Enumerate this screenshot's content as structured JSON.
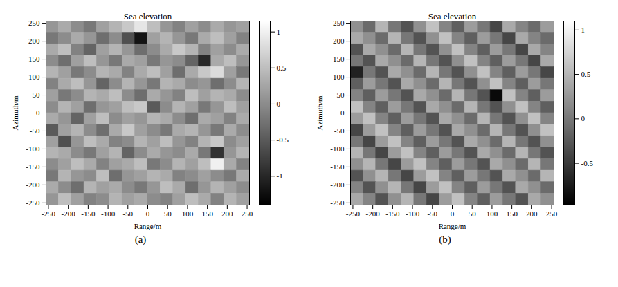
{
  "chart_data": [
    {
      "type": "heatmap",
      "title": "Sea elevation",
      "label": "(a)",
      "x_label": "Range/m",
      "y_label": "Azimuth/m",
      "xlim": [
        -256,
        256
      ],
      "xticks": [
        -250,
        -200,
        -150,
        -100,
        -50,
        0,
        50,
        100,
        150,
        200,
        250
      ],
      "ylim": [
        -256,
        256
      ],
      "yticks": [
        -250,
        -200,
        -150,
        -100,
        -50,
        0,
        50,
        100,
        150,
        200,
        250
      ],
      "colorbar": {
        "range": [
          -1.4,
          1.15
        ],
        "ticks": [
          -1,
          -0.5,
          0,
          0.5,
          1
        ]
      },
      "z": [
        [
          0.1,
          0.3,
          0.0,
          -0.2,
          0.2,
          0.4,
          0.6,
          0.9,
          0.5,
          0.1,
          -0.1,
          0.2,
          0.0,
          0.3,
          0.1,
          0.2
        ],
        [
          -0.2,
          0.0,
          0.3,
          0.1,
          -0.3,
          0.0,
          -0.6,
          -1.2,
          0.2,
          0.4,
          0.1,
          -0.2,
          0.3,
          0.5,
          0.2,
          -0.1
        ],
        [
          0.3,
          0.5,
          -0.1,
          -0.4,
          0.2,
          0.4,
          0.1,
          -0.3,
          0.0,
          0.3,
          0.6,
          0.4,
          -0.1,
          0.2,
          0.0,
          0.3
        ],
        [
          0.0,
          -0.3,
          0.2,
          0.5,
          0.1,
          -0.2,
          0.3,
          0.2,
          -0.2,
          0.1,
          0.0,
          -0.4,
          -1.0,
          0.3,
          0.5,
          0.1
        ],
        [
          0.4,
          0.2,
          -0.2,
          0.0,
          0.4,
          0.3,
          -0.1,
          0.3,
          0.5,
          0.2,
          -0.3,
          0.3,
          0.6,
          0.8,
          0.2,
          -0.2
        ],
        [
          -0.1,
          0.3,
          0.5,
          0.1,
          -0.4,
          0.0,
          0.4,
          0.1,
          -0.2,
          0.4,
          0.3,
          0.0,
          0.1,
          -0.3,
          0.0,
          0.4
        ],
        [
          0.2,
          -0.2,
          0.0,
          0.4,
          0.3,
          0.5,
          0.0,
          -0.3,
          0.3,
          0.1,
          -0.1,
          0.5,
          0.2,
          0.4,
          0.3,
          0.0
        ],
        [
          0.0,
          0.4,
          0.2,
          -0.3,
          0.1,
          0.2,
          0.5,
          0.6,
          -0.5,
          0.0,
          0.4,
          0.2,
          -0.2,
          0.1,
          0.5,
          0.2
        ],
        [
          0.3,
          0.1,
          -0.4,
          0.2,
          0.5,
          0.0,
          0.2,
          0.1,
          0.4,
          0.3,
          0.0,
          -0.3,
          0.3,
          0.2,
          -0.1,
          0.3
        ],
        [
          -0.5,
          0.2,
          0.4,
          0.0,
          -0.3,
          0.3,
          0.6,
          0.2,
          0.0,
          -0.2,
          0.3,
          0.4,
          0.1,
          -0.2,
          0.3,
          0.0
        ],
        [
          0.2,
          -0.6,
          0.1,
          0.5,
          0.3,
          -0.1,
          0.0,
          0.4,
          0.2,
          0.5,
          0.1,
          -0.1,
          0.4,
          0.6,
          0.0,
          0.2
        ],
        [
          0.4,
          0.3,
          0.0,
          -0.2,
          0.2,
          0.4,
          -0.4,
          0.0,
          0.3,
          0.1,
          0.0,
          0.3,
          -0.2,
          -0.9,
          0.1,
          0.4
        ],
        [
          0.0,
          0.2,
          0.5,
          0.3,
          -0.1,
          0.2,
          0.3,
          0.5,
          -0.2,
          0.0,
          0.4,
          0.2,
          0.5,
          1.0,
          0.3,
          -0.1
        ],
        [
          -0.2,
          0.4,
          0.1,
          0.0,
          0.5,
          -0.3,
          0.1,
          0.2,
          0.4,
          0.3,
          -0.1,
          0.0,
          0.2,
          0.0,
          -0.2,
          0.3
        ],
        [
          0.3,
          0.0,
          -0.3,
          0.4,
          0.2,
          0.3,
          0.0,
          -0.2,
          0.1,
          0.5,
          0.3,
          -0.3,
          0.1,
          0.4,
          0.2,
          0.0
        ],
        [
          0.1,
          0.5,
          0.2,
          -0.1,
          0.0,
          0.4,
          0.2,
          0.3,
          0.0,
          -0.1,
          0.2,
          0.5,
          0.3,
          -0.1,
          0.4,
          0.2
        ]
      ]
    },
    {
      "type": "heatmap",
      "title": "Sea elevation",
      "label": "(b)",
      "x_label": "Range/m",
      "y_label": "Azimuth/m",
      "xlim": [
        -256,
        256
      ],
      "xticks": [
        -250,
        -200,
        -150,
        -100,
        -50,
        0,
        50,
        100,
        150,
        200,
        250
      ],
      "ylim": [
        -256,
        256
      ],
      "yticks": [
        -250,
        -200,
        -150,
        -100,
        -50,
        0,
        50,
        100,
        150,
        200,
        250
      ],
      "colorbar": {
        "range": [
          -0.97,
          1.1
        ],
        "ticks": [
          -0.5,
          0,
          0.5,
          1
        ]
      },
      "z": [
        [
          0.2,
          -0.1,
          0.5,
          0.0,
          -0.3,
          0.2,
          0.6,
          0.1,
          -0.2,
          0.3,
          0.0,
          -0.4,
          0.4,
          0.1,
          -0.1,
          0.3
        ],
        [
          0.4,
          0.2,
          -0.1,
          0.5,
          0.0,
          -0.3,
          0.2,
          0.6,
          0.1,
          -0.2,
          0.3,
          0.0,
          -0.4,
          0.4,
          0.1,
          -0.1
        ],
        [
          -0.3,
          0.4,
          0.2,
          -0.1,
          0.5,
          0.0,
          -0.3,
          0.2,
          0.6,
          0.1,
          -0.2,
          0.3,
          0.0,
          -0.4,
          0.4,
          0.1
        ],
        [
          0.0,
          -0.3,
          0.4,
          0.2,
          -0.1,
          0.5,
          0.0,
          -0.3,
          0.2,
          0.6,
          0.1,
          -0.2,
          0.3,
          0.0,
          -0.4,
          0.4
        ],
        [
          -0.7,
          0.0,
          -0.3,
          0.4,
          0.2,
          -0.1,
          0.5,
          0.0,
          -0.3,
          0.2,
          0.6,
          0.1,
          -0.2,
          0.3,
          0.0,
          -0.4
        ],
        [
          -0.2,
          0.3,
          0.0,
          -0.3,
          0.4,
          0.2,
          -0.1,
          0.5,
          0.0,
          -0.3,
          0.2,
          0.6,
          0.1,
          -0.2,
          0.3,
          0.0
        ],
        [
          0.1,
          -0.2,
          0.3,
          0.0,
          -0.3,
          0.4,
          0.2,
          -0.1,
          0.5,
          0.0,
          -0.3,
          -0.9,
          0.6,
          0.1,
          -0.2,
          0.3
        ],
        [
          0.6,
          0.1,
          -0.2,
          0.3,
          0.0,
          -0.3,
          0.4,
          0.2,
          -0.1,
          0.5,
          0.0,
          -0.3,
          0.2,
          0.6,
          0.1,
          -0.2
        ],
        [
          0.3,
          0.6,
          0.1,
          -0.2,
          0.3,
          0.0,
          -0.3,
          0.4,
          0.2,
          -0.1,
          0.5,
          0.0,
          -0.3,
          0.2,
          0.6,
          0.1
        ],
        [
          -0.4,
          0.3,
          0.6,
          0.1,
          -0.2,
          0.3,
          0.0,
          -0.3,
          0.4,
          0.2,
          -0.1,
          0.5,
          0.0,
          -0.3,
          0.2,
          0.6
        ],
        [
          0.0,
          -0.4,
          0.3,
          0.6,
          0.1,
          -0.2,
          0.3,
          0.0,
          -0.3,
          0.4,
          0.2,
          -0.1,
          0.5,
          0.0,
          -0.3,
          0.2
        ],
        [
          0.5,
          0.0,
          -0.4,
          0.3,
          0.6,
          0.1,
          -0.2,
          0.3,
          0.0,
          -0.3,
          0.4,
          0.2,
          -0.1,
          0.5,
          0.0,
          -0.3
        ],
        [
          0.2,
          0.5,
          0.0,
          -0.4,
          0.3,
          0.6,
          0.1,
          -0.2,
          0.3,
          0.0,
          -0.3,
          0.4,
          0.2,
          -0.1,
          0.5,
          0.0
        ],
        [
          -0.3,
          0.2,
          0.5,
          0.0,
          -0.4,
          0.3,
          0.6,
          0.1,
          -0.2,
          0.3,
          0.0,
          -0.3,
          0.4,
          0.2,
          -0.1,
          0.5
        ],
        [
          0.1,
          -0.3,
          0.2,
          0.5,
          0.0,
          -0.4,
          0.3,
          0.6,
          0.1,
          -0.2,
          0.3,
          0.0,
          -0.3,
          0.4,
          0.2,
          -0.1
        ],
        [
          0.4,
          0.1,
          -0.3,
          0.2,
          0.5,
          0.0,
          -0.4,
          0.3,
          0.6,
          0.1,
          -0.2,
          0.3,
          0.0,
          -0.3,
          0.4,
          0.2
        ]
      ]
    }
  ]
}
